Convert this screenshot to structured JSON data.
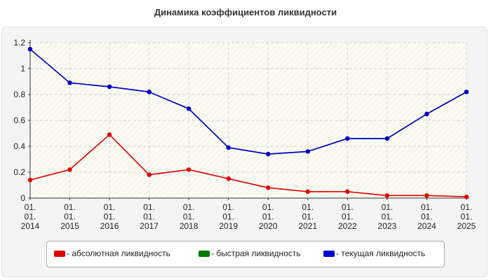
{
  "title": "Динамика коэффициентов ликвидности",
  "colors": {
    "abs": "#e00000",
    "quick": "#007a00",
    "current": "#0000cc"
  },
  "chart_data": {
    "type": "line",
    "title": "Динамика коэффициентов ликвидности",
    "xlabel": "",
    "ylabel": "",
    "ylim": [
      0,
      1.2
    ],
    "yticks": [
      "0",
      "0.2",
      "0.4",
      "0.6",
      "0.8",
      "1",
      "1.2"
    ],
    "categories": [
      [
        "01.",
        "01.",
        "2014"
      ],
      [
        "01.",
        "01.",
        "2015"
      ],
      [
        "01.",
        "01.",
        "2016"
      ],
      [
        "01.",
        "01.",
        "2017"
      ],
      [
        "01.",
        "01.",
        "2018"
      ],
      [
        "01.",
        "01.",
        "2019"
      ],
      [
        "01.",
        "01.",
        "2020"
      ],
      [
        "01.",
        "01.",
        "2021"
      ],
      [
        "01.",
        "01.",
        "2022"
      ],
      [
        "01.",
        "01.",
        "2023"
      ],
      [
        "01.",
        "01.",
        "2024"
      ],
      [
        "01.",
        "01.",
        "2025"
      ]
    ],
    "grid": true,
    "legend_position": "bottom",
    "series": [
      {
        "name": "- абсолютная ликвидность",
        "color": "#e00000",
        "values": [
          0.14,
          0.22,
          0.49,
          0.18,
          0.22,
          0.15,
          0.08,
          0.05,
          0.05,
          0.02,
          0.02,
          0.01
        ]
      },
      {
        "name": "- быстрая ликвидность",
        "color": "#007a00",
        "values": [
          1.15,
          0.89,
          0.86,
          0.82,
          0.69,
          0.39,
          0.34,
          0.36,
          0.46,
          0.46,
          0.65,
          0.82
        ]
      },
      {
        "name": "- текущая ликвидность",
        "color": "#0000cc",
        "values": [
          1.15,
          0.89,
          0.86,
          0.82,
          0.69,
          0.39,
          0.34,
          0.36,
          0.46,
          0.46,
          0.65,
          0.82
        ]
      }
    ]
  }
}
